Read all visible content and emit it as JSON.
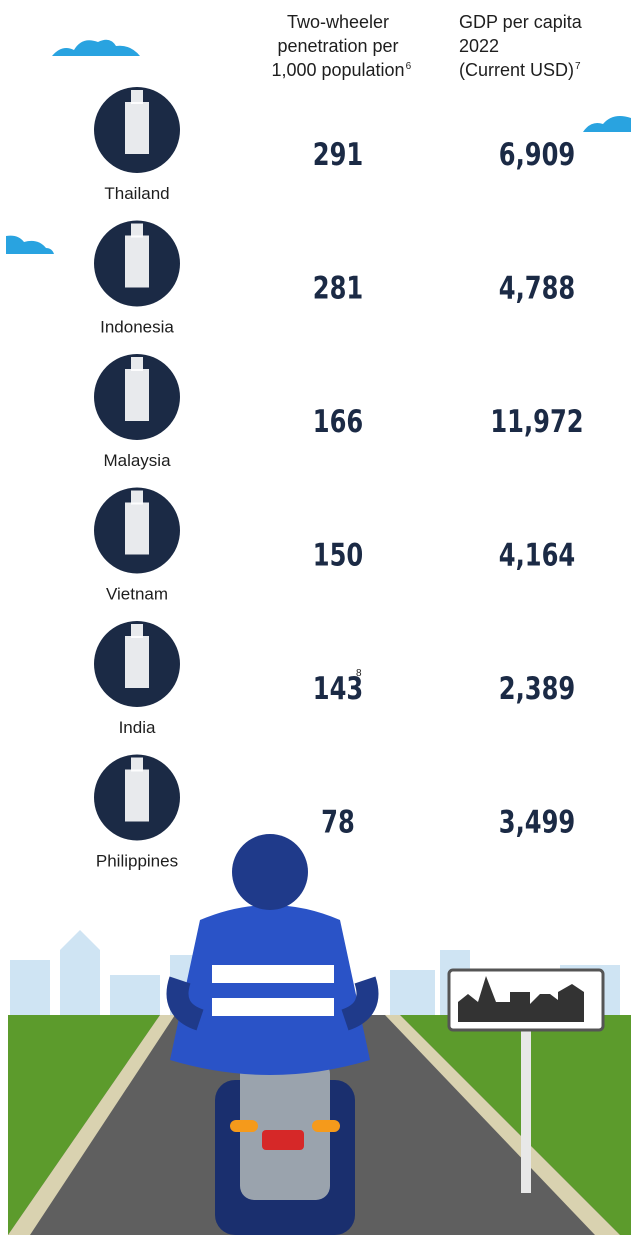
{
  "header": {
    "penetration": {
      "lines": [
        "Two-wheeler",
        "penetration per",
        "1,000 population"
      ],
      "note": "6"
    },
    "gdp": {
      "lines": [
        "GDP per capita",
        "2022",
        "(Current USD)"
      ],
      "note": "7"
    }
  },
  "rows": [
    {
      "country": "Thailand",
      "penetration": "291",
      "gdp": "6,909"
    },
    {
      "country": "Indonesia",
      "penetration": "281",
      "gdp": "4,788"
    },
    {
      "country": "Malaysia",
      "penetration": "166",
      "gdp": "11,972"
    },
    {
      "country": "Vietnam",
      "penetration": "150",
      "gdp": "4,164"
    },
    {
      "country": "India",
      "penetration": "143",
      "note": "8",
      "gdp": "2,389"
    },
    {
      "country": "Philippines",
      "penetration": "78",
      "gdp": "3,499"
    }
  ]
}
